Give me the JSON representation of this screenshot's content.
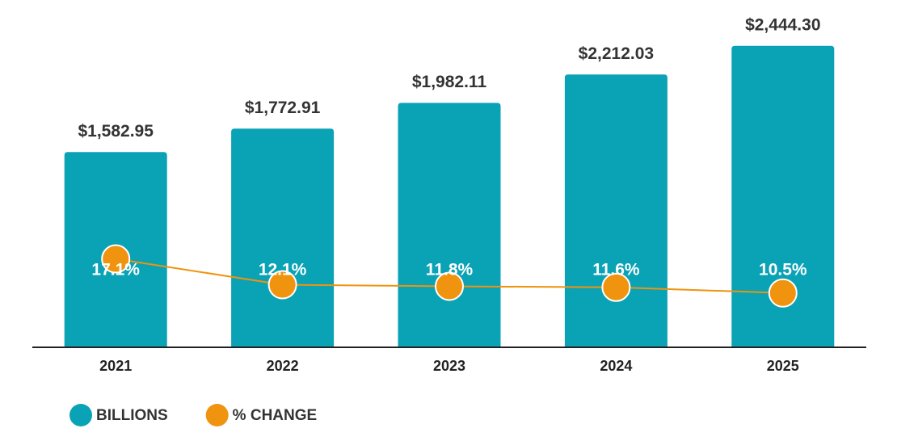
{
  "chart_data": {
    "type": "bar",
    "categories": [
      "2021",
      "2022",
      "2023",
      "2024",
      "2025"
    ],
    "ylim": [
      0,
      2600
    ],
    "y2lim": [
      0,
      62
    ],
    "series": [
      {
        "name": "BILLIONS",
        "type": "bar",
        "color": "#0aa2b5",
        "values": [
          1582.95,
          1772.91,
          1982.11,
          2212.03,
          2444.3
        ],
        "value_labels": [
          "$1,582.95",
          "$1,772.91",
          "$1,982.11",
          "$2,212.03",
          "$2,444.30"
        ]
      },
      {
        "name": "% CHANGE",
        "type": "line",
        "axis": "y2",
        "color": "#f0930e",
        "values": [
          17.1,
          12.1,
          11.8,
          11.6,
          10.5
        ],
        "value_labels": [
          "17.1%",
          "12.1%",
          "11.8%",
          "11.6%",
          "10.5%"
        ]
      }
    ],
    "legend": "bottom-left"
  }
}
